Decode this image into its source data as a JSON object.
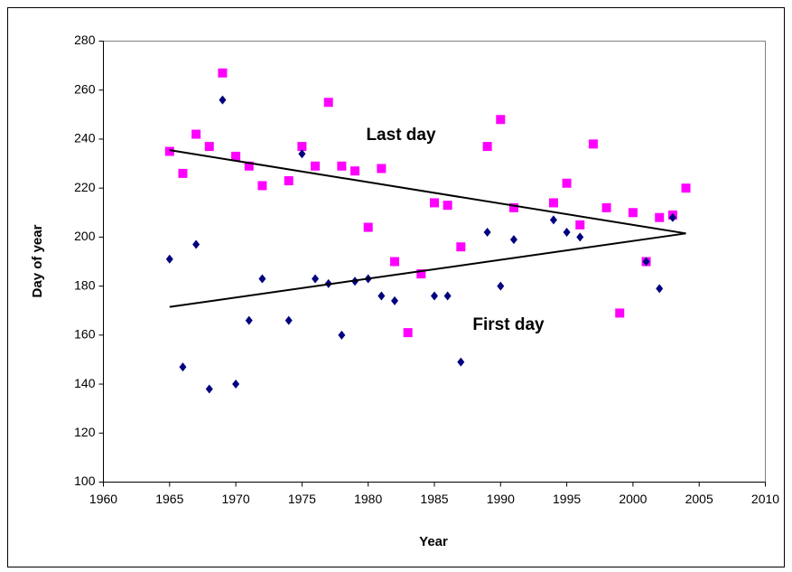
{
  "chart_data": {
    "type": "scatter",
    "x_label": "Year",
    "y_label": "Day of year",
    "xlim": [
      1960,
      2010
    ],
    "xticks": [
      1960,
      1965,
      1970,
      1975,
      1980,
      1985,
      1990,
      1995,
      2000,
      2005,
      2010
    ],
    "ylim": [
      100,
      280
    ],
    "yticks": [
      100,
      120,
      140,
      160,
      180,
      200,
      220,
      240,
      260,
      280
    ],
    "grid": false,
    "series": [
      {
        "name": "Last day",
        "color": "#ff00ff",
        "marker": "square",
        "x": [
          1965,
          1966,
          1967,
          1968,
          1969,
          1970,
          1971,
          1972,
          1974,
          1975,
          1976,
          1977,
          1978,
          1979,
          1980,
          1981,
          1982,
          1983,
          1984,
          1985,
          1986,
          1987,
          1989,
          1990,
          1991,
          1994,
          1995,
          1996,
          1997,
          1998,
          1999,
          2000,
          2001,
          2002,
          2003,
          2004
        ],
        "values": [
          235,
          226,
          242,
          237,
          267,
          233,
          229,
          221,
          223,
          237,
          229,
          255,
          229,
          227,
          204,
          228,
          190,
          161,
          185,
          214,
          213,
          196,
          237,
          248,
          212,
          214,
          222,
          205,
          238,
          212,
          169,
          210,
          190,
          208,
          209,
          220
        ],
        "trend": {
          "x": [
            1965,
            2004
          ],
          "values": [
            235.5,
            201.5
          ],
          "color": "#000000"
        }
      },
      {
        "name": "First day",
        "color": "#000080",
        "marker": "diamond",
        "x": [
          1965,
          1966,
          1967,
          1968,
          1969,
          1970,
          1971,
          1972,
          1974,
          1975,
          1976,
          1977,
          1978,
          1979,
          1980,
          1981,
          1982,
          1985,
          1986,
          1987,
          1989,
          1990,
          1991,
          1994,
          1995,
          1996,
          2001,
          2002,
          2003
        ],
        "values": [
          191,
          147,
          197,
          138,
          256,
          140,
          166,
          183,
          166,
          234,
          183,
          181,
          160,
          182,
          183,
          176,
          174,
          176,
          176,
          149,
          202,
          180,
          199,
          207,
          202,
          200,
          190,
          179,
          208
        ],
        "trend": {
          "x": [
            1965,
            2004
          ],
          "values": [
            171.5,
            201.5
          ],
          "color": "#000000"
        }
      }
    ]
  }
}
